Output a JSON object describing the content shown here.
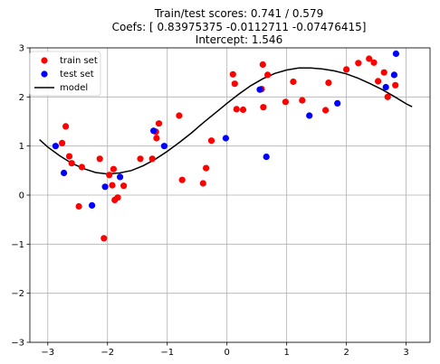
{
  "chart_data": {
    "type": "scatter",
    "title_lines": [
      "Train/test scores: 0.741 / 0.579",
      "Coefs: [ 0.83975375 -0.0112711  -0.07476415]",
      "Intercept: 1.546"
    ],
    "xlabel": "",
    "ylabel": "",
    "xlim": [
      -3.3,
      3.4
    ],
    "ylim": [
      -3,
      3
    ],
    "xticks": [
      -3,
      -2,
      -1,
      0,
      1,
      2,
      3
    ],
    "yticks": [
      -3,
      -2,
      -1,
      0,
      1,
      2,
      3
    ],
    "grid": true,
    "legend_position": "top-left",
    "series": [
      {
        "name": "train set",
        "kind": "points",
        "color": "#ff0000",
        "points": [
          [
            -2.76,
            1.06
          ],
          [
            -2.7,
            1.4
          ],
          [
            -2.64,
            0.79
          ],
          [
            -2.6,
            0.65
          ],
          [
            -2.48,
            -0.23
          ],
          [
            -2.43,
            0.57
          ],
          [
            -2.13,
            0.74
          ],
          [
            -2.06,
            -0.88
          ],
          [
            -1.97,
            0.41
          ],
          [
            -1.92,
            0.2
          ],
          [
            -1.9,
            0.53
          ],
          [
            -1.88,
            -0.1
          ],
          [
            -1.83,
            -0.05
          ],
          [
            -1.73,
            0.19
          ],
          [
            -1.45,
            0.74
          ],
          [
            -1.25,
            0.74
          ],
          [
            -1.19,
            1.29
          ],
          [
            -1.18,
            1.16
          ],
          [
            -1.14,
            1.46
          ],
          [
            -0.8,
            1.62
          ],
          [
            -0.75,
            0.31
          ],
          [
            -0.4,
            0.24
          ],
          [
            -0.35,
            0.55
          ],
          [
            -0.26,
            1.11
          ],
          [
            0.1,
            2.46
          ],
          [
            0.13,
            2.27
          ],
          [
            0.16,
            1.75
          ],
          [
            0.27,
            1.74
          ],
          [
            0.58,
            2.16
          ],
          [
            0.6,
            2.66
          ],
          [
            0.61,
            1.79
          ],
          [
            0.68,
            2.45
          ],
          [
            0.98,
            1.9
          ],
          [
            1.11,
            2.31
          ],
          [
            1.26,
            1.93
          ],
          [
            1.65,
            1.73
          ],
          [
            1.7,
            2.29
          ],
          [
            2.0,
            2.56
          ],
          [
            2.2,
            2.69
          ],
          [
            2.38,
            2.78
          ],
          [
            2.46,
            2.7
          ],
          [
            2.53,
            2.32
          ],
          [
            2.63,
            2.5
          ],
          [
            2.69,
            2.0
          ],
          [
            2.82,
            2.24
          ]
        ]
      },
      {
        "name": "test set",
        "kind": "points",
        "color": "#0000ff",
        "points": [
          [
            -2.87,
            1.0
          ],
          [
            -2.73,
            0.45
          ],
          [
            -2.26,
            -0.21
          ],
          [
            -2.04,
            0.17
          ],
          [
            -1.79,
            0.37
          ],
          [
            -1.23,
            1.31
          ],
          [
            -1.05,
            1.0
          ],
          [
            -0.02,
            1.16
          ],
          [
            0.55,
            2.15
          ],
          [
            0.66,
            0.78
          ],
          [
            1.38,
            1.62
          ],
          [
            1.85,
            1.87
          ],
          [
            2.66,
            2.2
          ],
          [
            2.8,
            2.45
          ],
          [
            2.83,
            2.88
          ]
        ]
      },
      {
        "name": "model",
        "kind": "line",
        "color": "#000000",
        "curve": [
          [
            -3.14,
            1.13
          ],
          [
            -3.0,
            0.98
          ],
          [
            -2.8,
            0.8
          ],
          [
            -2.6,
            0.65
          ],
          [
            -2.4,
            0.54
          ],
          [
            -2.2,
            0.46
          ],
          [
            -2.0,
            0.43
          ],
          [
            -1.8,
            0.45
          ],
          [
            -1.6,
            0.5
          ],
          [
            -1.4,
            0.6
          ],
          [
            -1.2,
            0.73
          ],
          [
            -1.0,
            0.89
          ],
          [
            -0.8,
            1.07
          ],
          [
            -0.6,
            1.26
          ],
          [
            -0.4,
            1.47
          ],
          [
            -0.2,
            1.67
          ],
          [
            0.0,
            1.87
          ],
          [
            0.2,
            2.06
          ],
          [
            0.4,
            2.23
          ],
          [
            0.6,
            2.37
          ],
          [
            0.8,
            2.48
          ],
          [
            1.0,
            2.55
          ],
          [
            1.2,
            2.59
          ],
          [
            1.4,
            2.59
          ],
          [
            1.6,
            2.57
          ],
          [
            1.8,
            2.53
          ],
          [
            2.0,
            2.47
          ],
          [
            2.2,
            2.38
          ],
          [
            2.4,
            2.27
          ],
          [
            2.6,
            2.15
          ],
          [
            2.8,
            2.01
          ],
          [
            3.0,
            1.86
          ],
          [
            3.1,
            1.8
          ]
        ]
      }
    ]
  }
}
